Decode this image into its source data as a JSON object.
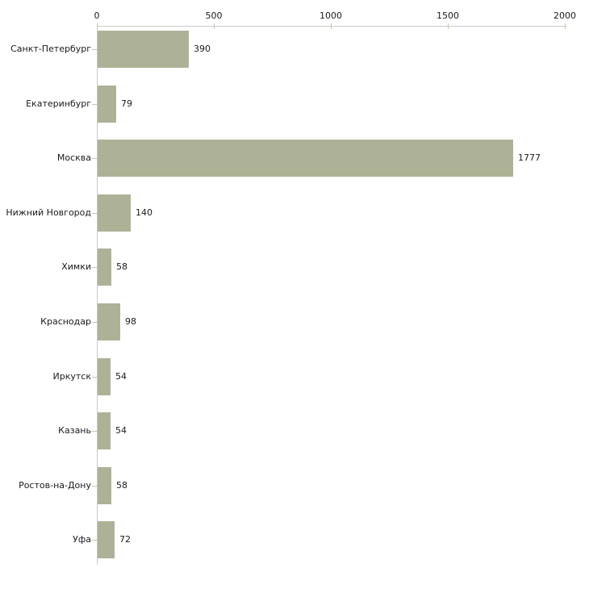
{
  "chart_data": {
    "type": "bar",
    "orientation": "horizontal",
    "title": "",
    "xlabel": "",
    "ylabel": "",
    "categories": [
      "Санкт-Петербург",
      "Екатеринбург",
      "Москва",
      "Нижний Новгород",
      "Химки",
      "Краснодар",
      "Иркутск",
      "Казань",
      "Ростов-на-Дону",
      "Уфа"
    ],
    "values": [
      390,
      79,
      1777,
      140,
      58,
      98,
      54,
      54,
      58,
      72
    ],
    "value_labels": [
      "390",
      "79",
      "1777",
      "140",
      "58",
      "98",
      "54",
      "54",
      "58",
      "72"
    ],
    "xlim": [
      0,
      2000
    ],
    "x_ticks": [
      0,
      500,
      1000,
      1500,
      2000
    ],
    "x_tick_labels": [
      "0",
      "500",
      "1000",
      "1500",
      "2000"
    ],
    "axis_position": "top",
    "grid": false,
    "legend": false,
    "colors": {
      "bar_fill": "#adb296",
      "tick_mark": "#c6c9a3",
      "axis_line": "#c9c9c9",
      "text": "#1a1a1a",
      "background": "#ffffff"
    }
  }
}
